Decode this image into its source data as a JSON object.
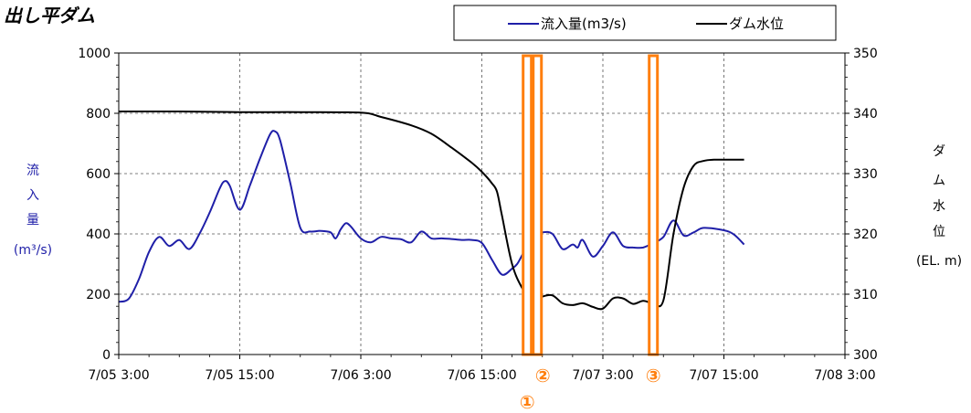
{
  "chart_data": {
    "type": "line",
    "title": "出し平ダム",
    "x_ticks": [
      "7/05 3:00",
      "7/05 15:00",
      "7/06 3:00",
      "7/06 15:00",
      "7/07 3:00",
      "7/07 15:00",
      "7/08 3:00"
    ],
    "x_range": [
      "7/05 3:00",
      "7/08 3:00"
    ],
    "x_unit": "hours",
    "y_left": {
      "label_chars": [
        "流",
        "入",
        "量",
        "(m³/s)"
      ],
      "ticks": [
        "0",
        "200",
        "400",
        "600",
        "800",
        "1000"
      ],
      "ylim": [
        0,
        1000
      ]
    },
    "y_right": {
      "label_chars": [
        "ダ",
        "ム",
        "水",
        "位",
        "(EL. m)"
      ],
      "ticks": [
        "300",
        "310",
        "320",
        "330",
        "340",
        "350"
      ],
      "ylim": [
        300,
        350
      ]
    },
    "grid": true,
    "legend": {
      "placement": "top-right",
      "entries": [
        "流入量(m3/s)",
        "ダム水位"
      ]
    },
    "series": [
      {
        "name": "流入量(m3/s)",
        "axis": "left",
        "color": "#1f1fa8",
        "points": [
          [
            "7/05 3:00",
            175
          ],
          [
            "7/05 4:00",
            185
          ],
          [
            "7/05 5:00",
            250
          ],
          [
            "7/05 6:00",
            340
          ],
          [
            "7/05 7:00",
            390
          ],
          [
            "7/05 8:00",
            360
          ],
          [
            "7/05 9:00",
            380
          ],
          [
            "7/05 10:00",
            350
          ],
          [
            "7/05 11:00",
            400
          ],
          [
            "7/05 12:00",
            470
          ],
          [
            "7/05 13:00",
            550
          ],
          [
            "7/05 13:30",
            575
          ],
          [
            "7/05 14:00",
            560
          ],
          [
            "7/05 15:00",
            480
          ],
          [
            "7/05 16:00",
            560
          ],
          [
            "7/05 17:00",
            650
          ],
          [
            "7/05 18:00",
            730
          ],
          [
            "7/05 18:30",
            740
          ],
          [
            "7/05 19:00",
            710
          ],
          [
            "7/05 20:00",
            570
          ],
          [
            "7/05 21:00",
            420
          ],
          [
            "7/05 22:00",
            408
          ],
          [
            "7/05 23:00",
            410
          ],
          [
            "7/06 0:00",
            405
          ],
          [
            "7/06 0:30",
            385
          ],
          [
            "7/06 1:00",
            415
          ],
          [
            "7/06 1:30",
            435
          ],
          [
            "7/06 2:00",
            425
          ],
          [
            "7/06 3:00",
            385
          ],
          [
            "7/06 4:00",
            372
          ],
          [
            "7/06 5:00",
            390
          ],
          [
            "7/06 6:00",
            385
          ],
          [
            "7/06 7:00",
            382
          ],
          [
            "7/06 8:00",
            372
          ],
          [
            "7/06 9:00",
            408
          ],
          [
            "7/06 10:00",
            385
          ],
          [
            "7/06 11:00",
            385
          ],
          [
            "7/06 12:00",
            383
          ],
          [
            "7/06 13:00",
            380
          ],
          [
            "7/06 14:00",
            380
          ],
          [
            "7/06 15:00",
            370
          ],
          [
            "7/06 16:00",
            315
          ],
          [
            "7/06 17:00",
            265
          ],
          [
            "7/06 18:00",
            285
          ],
          [
            "7/06 18:30",
            300
          ],
          [
            "7/06 19:00",
            330
          ],
          [
            "7/06 20:00",
            390
          ],
          [
            "7/06 21:00",
            405
          ],
          [
            "7/06 22:00",
            400
          ],
          [
            "7/06 23:00",
            350
          ],
          [
            "7/07 0:00",
            365
          ],
          [
            "7/07 0:30",
            355
          ],
          [
            "7/07 1:00",
            380
          ],
          [
            "7/07 2:00",
            325
          ],
          [
            "7/07 3:00",
            360
          ],
          [
            "7/07 4:00",
            405
          ],
          [
            "7/07 5:00",
            360
          ],
          [
            "7/07 6:00",
            355
          ],
          [
            "7/07 7:00",
            355
          ],
          [
            "7/07 8:00",
            370
          ],
          [
            "7/07 9:00",
            390
          ],
          [
            "7/07 10:00",
            445
          ],
          [
            "7/07 11:00",
            395
          ],
          [
            "7/07 12:00",
            405
          ],
          [
            "7/07 13:00",
            420
          ],
          [
            "7/07 15:00",
            412
          ],
          [
            "7/07 16:00",
            398
          ],
          [
            "7/07 17:00",
            365
          ]
        ]
      },
      {
        "name": "ダム水位",
        "axis": "right",
        "color": "#000000",
        "points": [
          [
            "7/05 3:00",
            340.3
          ],
          [
            "7/05 9:00",
            340.3
          ],
          [
            "7/05 15:00",
            340.2
          ],
          [
            "7/05 21:00",
            340.2
          ],
          [
            "7/06 3:00",
            340.1
          ],
          [
            "7/06 5:00",
            339.4
          ],
          [
            "7/06 8:00",
            338.0
          ],
          [
            "7/06 10:00",
            336.6
          ],
          [
            "7/06 12:00",
            334.3
          ],
          [
            "7/06 14:00",
            331.8
          ],
          [
            "7/06 15:00",
            330.3
          ],
          [
            "7/06 16:00",
            328.4
          ],
          [
            "7/06 16:30",
            327.0
          ],
          [
            "7/06 17:00",
            323.0
          ],
          [
            "7/06 18:00",
            315.0
          ],
          [
            "7/06 19:00",
            311.0
          ],
          [
            "7/06 20:00",
            308.8
          ],
          [
            "7/06 21:00",
            309.6
          ],
          [
            "7/06 22:00",
            309.8
          ],
          [
            "7/06 23:00",
            308.5
          ],
          [
            "7/07 0:00",
            308.2
          ],
          [
            "7/07 1:00",
            308.5
          ],
          [
            "7/07 2:00",
            307.9
          ],
          [
            "7/07 3:00",
            307.6
          ],
          [
            "7/07 4:00",
            309.3
          ],
          [
            "7/07 5:00",
            309.3
          ],
          [
            "7/07 6:00",
            308.4
          ],
          [
            "7/07 7:00",
            308.9
          ],
          [
            "7/07 8:00",
            308.5
          ],
          [
            "7/07 9:00",
            309.0
          ],
          [
            "7/07 10:00",
            320.0
          ],
          [
            "7/07 11:00",
            327.6
          ],
          [
            "7/07 12:00",
            331.3
          ],
          [
            "7/07 13:00",
            332.1
          ],
          [
            "7/07 14:00",
            332.3
          ],
          [
            "7/07 15:00",
            332.3
          ],
          [
            "7/07 17:00",
            332.3
          ]
        ]
      }
    ],
    "markers": [
      {
        "label": "①",
        "time": "7/06 19:30",
        "color": "#ff7f0e"
      },
      {
        "label": "②",
        "time": "7/06 20:30",
        "color": "#ff7f0e"
      },
      {
        "label": "③",
        "time": "7/07 8:00",
        "color": "#ff7f0e"
      }
    ]
  }
}
